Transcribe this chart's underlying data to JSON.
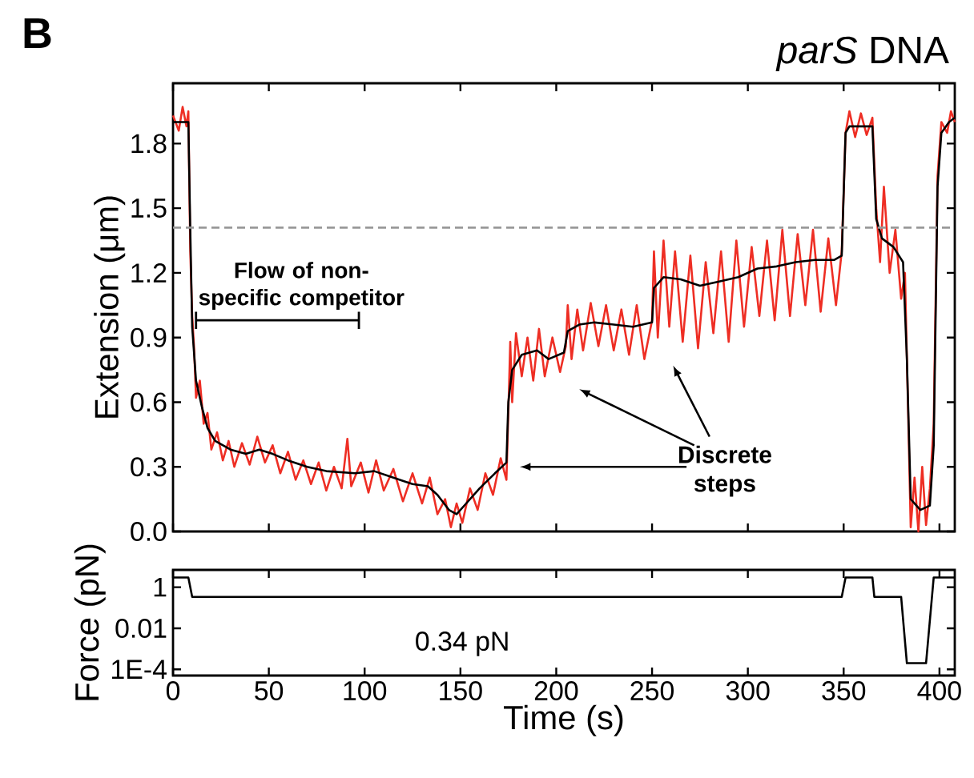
{
  "chart_data": [
    {
      "type": "line",
      "title": "*parS* DNA",
      "ylabel": "Extension (μm)",
      "xlim": [
        0,
        408
      ],
      "ylim": [
        0,
        2.08
      ],
      "xticks": [
        0,
        50,
        100,
        150,
        200,
        250,
        300,
        350,
        400
      ],
      "yticks": [
        {
          "value": 0,
          "label": "0.0"
        },
        0.3,
        0.6,
        0.9,
        1.2,
        1.5,
        1.8
      ],
      "tick_labels": "y",
      "ref_lines": [
        {
          "axis": "y",
          "value": 1.41,
          "color": "#999999",
          "line_style": "dashed"
        }
      ],
      "annotations": [
        "B",
        "Flow of non-specific competitor",
        "Discrete steps"
      ],
      "series": [
        {
          "color": "#ee2e24",
          "x": [
            0,
            3,
            5,
            7,
            8,
            9,
            10,
            11,
            12,
            14,
            16,
            18,
            20,
            23,
            26,
            29,
            32,
            36,
            40,
            44,
            48,
            52,
            56,
            60,
            64,
            68,
            72,
            76,
            80,
            84,
            88,
            91,
            93,
            98,
            102,
            106,
            110,
            115,
            120,
            125,
            130,
            134,
            138,
            142,
            145,
            148,
            151,
            155,
            159,
            163,
            167,
            171,
            174,
            175,
            176,
            177,
            179,
            182,
            185,
            188,
            191,
            194,
            198,
            202,
            205,
            206,
            208,
            211,
            214,
            218,
            222,
            226,
            230,
            234,
            238,
            242,
            246,
            250,
            251,
            253,
            256,
            259,
            262,
            266,
            270,
            274,
            278,
            282,
            286,
            290,
            294,
            298,
            302,
            306,
            310,
            314,
            318,
            322,
            326,
            330,
            334,
            338,
            342,
            346,
            349,
            351,
            353,
            356,
            359,
            362,
            365,
            367,
            369,
            371,
            374,
            377,
            380,
            382,
            384,
            385,
            387,
            389,
            391,
            393,
            395,
            397,
            399,
            401,
            404,
            406,
            408
          ],
          "values": [
            1.93,
            1.86,
            1.97,
            1.88,
            1.95,
            1.3,
            1.0,
            0.85,
            0.62,
            0.7,
            0.5,
            0.55,
            0.38,
            0.46,
            0.33,
            0.42,
            0.3,
            0.41,
            0.31,
            0.44,
            0.32,
            0.4,
            0.27,
            0.37,
            0.24,
            0.33,
            0.22,
            0.32,
            0.19,
            0.3,
            0.2,
            0.43,
            0.21,
            0.32,
            0.18,
            0.33,
            0.19,
            0.29,
            0.14,
            0.27,
            0.13,
            0.25,
            0.08,
            0.15,
            0.02,
            0.13,
            0.04,
            0.2,
            0.1,
            0.27,
            0.17,
            0.34,
            0.24,
            0.55,
            0.88,
            0.6,
            0.92,
            0.72,
            0.9,
            0.7,
            0.94,
            0.72,
            0.9,
            0.74,
            0.86,
            1.05,
            0.8,
            1.03,
            0.84,
            1.06,
            0.86,
            1.05,
            0.84,
            1.03,
            0.82,
            1.05,
            0.8,
            0.98,
            1.3,
            0.9,
            1.35,
            0.95,
            1.3,
            0.88,
            1.28,
            0.85,
            1.25,
            0.92,
            1.3,
            0.88,
            1.35,
            0.95,
            1.32,
            1.0,
            1.35,
            0.98,
            1.4,
            1.0,
            1.38,
            1.05,
            1.4,
            1.02,
            1.36,
            1.05,
            1.3,
            1.85,
            1.95,
            1.83,
            1.94,
            1.84,
            1.92,
            1.5,
            1.25,
            1.6,
            1.2,
            1.4,
            1.08,
            1.2,
            null,
            0.02,
            0.25,
            0.0,
            0.3,
            0.03,
            0.2,
            0.5,
            1.65,
            1.9,
            1.85,
            1.95,
            1.9
          ]
        },
        {
          "color": "#000000",
          "x": [
            0,
            8,
            9,
            10,
            12,
            15,
            18,
            22,
            30,
            38,
            45,
            52,
            60,
            70,
            80,
            95,
            105,
            115,
            125,
            133,
            138,
            144,
            148,
            153,
            160,
            168,
            174,
            175,
            177,
            182,
            190,
            196,
            204,
            206,
            212,
            220,
            230,
            240,
            250,
            251,
            256,
            265,
            275,
            285,
            295,
            305,
            315,
            325,
            335,
            345,
            349,
            351,
            353,
            365,
            367,
            370,
            376,
            381,
            383,
            385,
            390,
            395,
            397,
            399,
            401,
            405,
            408
          ],
          "values": [
            1.9,
            1.9,
            1.4,
            0.95,
            0.7,
            0.58,
            0.48,
            0.42,
            0.38,
            0.36,
            0.38,
            0.36,
            0.33,
            0.3,
            0.28,
            0.27,
            0.28,
            0.25,
            0.22,
            0.21,
            0.17,
            0.1,
            0.08,
            0.13,
            0.2,
            0.27,
            0.32,
            0.6,
            0.75,
            0.82,
            0.84,
            0.8,
            0.83,
            0.93,
            0.96,
            0.97,
            0.96,
            0.95,
            0.97,
            1.13,
            1.18,
            1.17,
            1.14,
            1.16,
            1.18,
            1.22,
            1.23,
            1.25,
            1.26,
            1.26,
            1.28,
            1.85,
            1.88,
            1.88,
            1.45,
            1.36,
            1.32,
            1.25,
            0.8,
            0.15,
            0.1,
            0.12,
            0.4,
            1.6,
            1.85,
            1.9,
            1.92
          ]
        }
      ]
    },
    {
      "type": "line",
      "xlabel": "Time (s)",
      "ylabel": "Force (pN)",
      "log": "y",
      "xlim": [
        0,
        408
      ],
      "ylim": [
        5e-05,
        7
      ],
      "xticks": [
        0,
        50,
        100,
        150,
        200,
        250,
        300,
        350,
        400
      ],
      "yticks": [
        {
          "value": 0.0001,
          "label": "1E-4"
        },
        {
          "value": 0.01,
          "label": "0.01"
        },
        {
          "value": 1,
          "label": "1"
        }
      ],
      "annotations": [
        "0.34 pN"
      ],
      "series": [
        {
          "color": "#000000",
          "x": [
            0,
            8,
            10,
            349,
            351,
            365,
            366,
            380,
            383,
            393,
            397,
            408
          ],
          "values": [
            3,
            3,
            0.34,
            0.34,
            3,
            3,
            0.34,
            0.34,
            0.0002,
            0.0002,
            3,
            3
          ]
        }
      ]
    }
  ]
}
